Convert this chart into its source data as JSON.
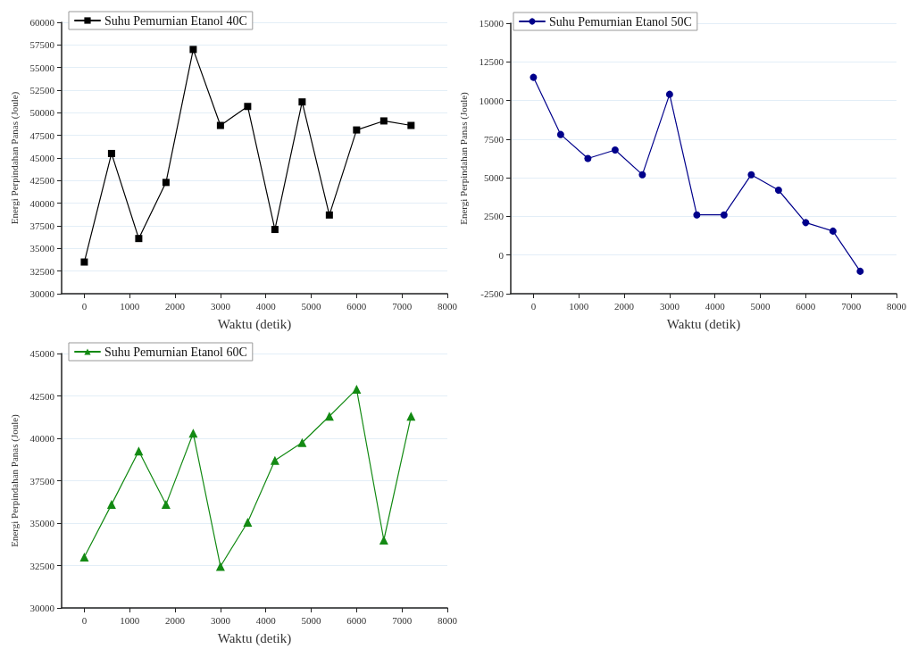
{
  "chart_data": [
    {
      "type": "line",
      "xlabel": "Waktu (detik)",
      "ylabel": "Energi Perpindahan Panas (Joule)",
      "x": [
        0,
        600,
        1200,
        1800,
        2400,
        3000,
        3600,
        4200,
        4800,
        5400,
        6000,
        6600,
        7200
      ],
      "series": [
        {
          "name": "Suhu Pemurnian Etanol 40C",
          "color": "#000000",
          "values": [
            33500,
            45500,
            36100,
            42300,
            57000,
            48600,
            50700,
            37100,
            51200,
            38700,
            48100,
            49100,
            48600
          ]
        }
      ],
      "xlim": [
        -500,
        8000
      ],
      "xticks": [
        0,
        1000,
        2000,
        3000,
        4000,
        5000,
        6000,
        7000,
        8000
      ],
      "ylim": [
        30000,
        60000
      ],
      "yticks": [
        30000,
        32500,
        35000,
        37500,
        40000,
        42500,
        45000,
        47500,
        50000,
        52500,
        55000,
        57500,
        60000
      ],
      "grid": "y",
      "legend": "top left",
      "marker": "square",
      "line_style": "solid"
    },
    {
      "type": "line",
      "xlabel": "Waktu (detik)",
      "ylabel": "Energi Perpindahan Panas (Joule)",
      "x": [
        0,
        600,
        1200,
        1800,
        2400,
        3000,
        3600,
        4200,
        4800,
        5400,
        6000,
        6600,
        7200
      ],
      "series": [
        {
          "name": "Suhu Pemurnian Etanol 50C",
          "color": "#00008b",
          "values": [
            11500,
            7800,
            6250,
            6800,
            5200,
            10400,
            2600,
            2600,
            5200,
            4200,
            2100,
            1550,
            -1050
          ]
        }
      ],
      "xlim": [
        -500,
        8000
      ],
      "xticks": [
        0,
        1000,
        2000,
        3000,
        4000,
        5000,
        6000,
        7000,
        8000
      ],
      "ylim": [
        -2500,
        15000
      ],
      "yticks": [
        -2500,
        0,
        2500,
        5000,
        7500,
        10000,
        12500,
        15000
      ],
      "grid": "y",
      "legend": "top left",
      "marker": "circle",
      "line_style": "solid"
    },
    {
      "type": "line",
      "xlabel": "Waktu (detik)",
      "ylabel": "Energi Perpindahan Panas (Joule)",
      "x": [
        0,
        600,
        1200,
        1800,
        2400,
        3000,
        3600,
        4200,
        4800,
        5400,
        6000,
        6600,
        7200
      ],
      "series": [
        {
          "name": "Suhu Pemurnian Etanol 60C",
          "color": "#138a13",
          "values": [
            33000,
            36100,
            39250,
            36100,
            40300,
            32450,
            35050,
            38700,
            39750,
            41300,
            42900,
            34000,
            41300
          ]
        }
      ],
      "xlim": [
        -500,
        8000
      ],
      "xticks": [
        0,
        1000,
        2000,
        3000,
        4000,
        5000,
        6000,
        7000,
        8000
      ],
      "ylim": [
        30000,
        45000
      ],
      "yticks": [
        30000,
        32500,
        35000,
        37500,
        40000,
        42500,
        45000
      ],
      "grid": "y",
      "legend": "top left",
      "marker": "triangle",
      "line_style": "solid"
    }
  ]
}
